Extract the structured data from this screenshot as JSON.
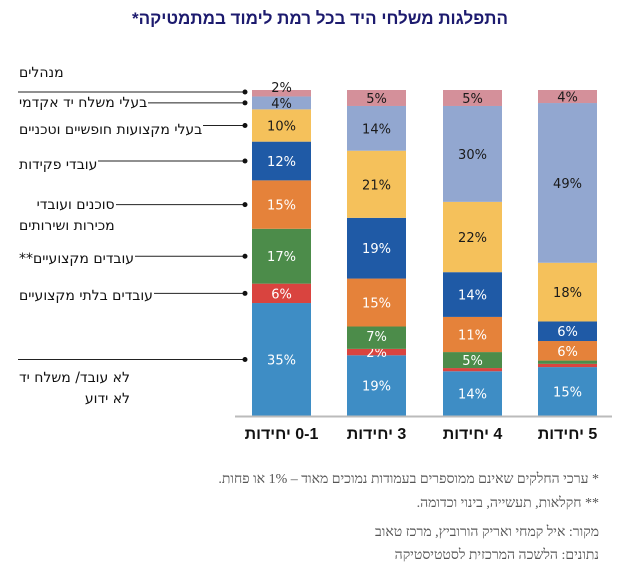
{
  "chart_data": {
    "type": "bar",
    "stacked": true,
    "title": "התפלגות משלחי היד בכל רמת לימוד במתמטיקה*",
    "categories": [
      "0-1 יחידות",
      "3 יחידות",
      "4 יחידות",
      "5 יחידות"
    ],
    "ylim": [
      0,
      100
    ],
    "unit": "%",
    "legend_placement": "left",
    "series": [
      {
        "name": "לא עובד/ משלח יד לא ידוע",
        "color": "#3E8DC5",
        "label_color": "#ffffff",
        "values": [
          35,
          19,
          14,
          15
        ]
      },
      {
        "name": "עובדים בלתי מקצועיים",
        "color": "#D9443F",
        "label_color": "#ffffff",
        "values": [
          6,
          2,
          1,
          1
        ]
      },
      {
        "name": "עובדים מקצועיים**",
        "color": "#4C8C4A",
        "label_color": "#ffffff",
        "values": [
          17,
          7,
          5,
          1
        ]
      },
      {
        "name": "סוכנים ועובדי מכירות ושירותים",
        "color": "#E5823A",
        "label_color": "#ffffff",
        "values": [
          15,
          15,
          11,
          6
        ]
      },
      {
        "name": "עובדי פקידות",
        "color": "#1F5AA6",
        "label_color": "#ffffff",
        "values": [
          12,
          19,
          14,
          6
        ]
      },
      {
        "name": "בעלי מקצועות חופשיים וטכניים",
        "color": "#F5C15B",
        "label_color": "#1a1a1a",
        "values": [
          10,
          21,
          22,
          18
        ]
      },
      {
        "name": "בעלי משלח יד אקדמי",
        "color": "#92A7D0",
        "label_color": "#1a1a1a",
        "values": [
          4,
          14,
          30,
          49
        ]
      },
      {
        "name": "מנהלים",
        "color": "#D4909A",
        "label_color": "#1a1a1a",
        "values": [
          2,
          5,
          5,
          4
        ]
      }
    ]
  },
  "notes": {
    "note1": "* ערכי החלקים שאינם ממוספרים בעמודות נמוכים מאוד – 1% או פחות.",
    "note2": "** חקלאות, תעשייה, בינוי וכדומה.",
    "source": "מקור: איל קמחי ואריק הורוביץ, מרכז טאוב",
    "data_source": "נתונים: הלשכה המרכזית לסטטיסטיקה"
  }
}
